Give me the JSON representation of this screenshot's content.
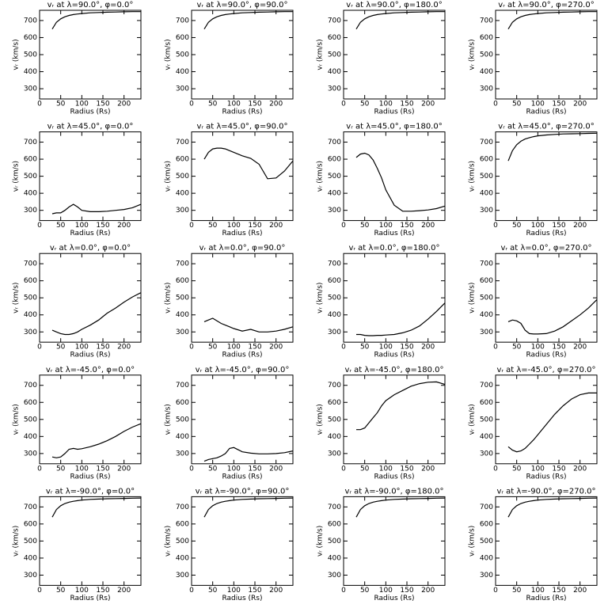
{
  "chart_data": [
    {
      "type": "line",
      "title": "vᵣ at λ=90.0°, φ=0.0°",
      "xlabel": "Radius (Rs)",
      "ylabel": "vᵣ (km/s)",
      "x": [
        30,
        40,
        50,
        60,
        70,
        80,
        90,
        100,
        120,
        140,
        160,
        180,
        200,
        220,
        240
      ],
      "values": [
        650,
        690,
        710,
        722,
        730,
        735,
        738,
        741,
        745,
        747,
        749,
        750,
        751,
        752,
        752
      ],
      "xlim": [
        0,
        240
      ],
      "ylim": [
        240,
        760
      ],
      "xticks": [
        0,
        50,
        100,
        150,
        200
      ],
      "yticks": [
        300,
        400,
        500,
        600,
        700
      ]
    },
    {
      "type": "line",
      "title": "vᵣ at λ=90.0°, φ=90.0°",
      "xlabel": "Radius (Rs)",
      "ylabel": "vᵣ (km/s)",
      "x": [
        30,
        40,
        50,
        60,
        70,
        80,
        90,
        100,
        120,
        140,
        160,
        180,
        200,
        220,
        240
      ],
      "values": [
        650,
        690,
        710,
        722,
        730,
        735,
        738,
        741,
        745,
        747,
        749,
        750,
        751,
        752,
        752
      ],
      "xlim": [
        0,
        240
      ],
      "ylim": [
        240,
        760
      ],
      "xticks": [
        0,
        50,
        100,
        150,
        200
      ],
      "yticks": [
        300,
        400,
        500,
        600,
        700
      ]
    },
    {
      "type": "line",
      "title": "vᵣ at λ=90.0°, φ=180.0°",
      "xlabel": "Radius (Rs)",
      "ylabel": "vᵣ (km/s)",
      "x": [
        30,
        40,
        50,
        60,
        70,
        80,
        90,
        100,
        120,
        140,
        160,
        180,
        200,
        220,
        240
      ],
      "values": [
        650,
        690,
        710,
        722,
        730,
        735,
        738,
        741,
        745,
        747,
        749,
        750,
        751,
        752,
        752
      ],
      "xlim": [
        0,
        240
      ],
      "ylim": [
        240,
        760
      ],
      "xticks": [
        0,
        50,
        100,
        150,
        200
      ],
      "yticks": [
        300,
        400,
        500,
        600,
        700
      ]
    },
    {
      "type": "line",
      "title": "vᵣ at λ=90.0°, φ=270.0°",
      "xlabel": "Radius (Rs)",
      "ylabel": "vᵣ (km/s)",
      "x": [
        30,
        40,
        50,
        60,
        70,
        80,
        90,
        100,
        120,
        140,
        160,
        180,
        200,
        220,
        240
      ],
      "values": [
        650,
        690,
        710,
        722,
        730,
        735,
        738,
        741,
        745,
        747,
        749,
        750,
        751,
        752,
        752
      ],
      "xlim": [
        0,
        240
      ],
      "ylim": [
        240,
        760
      ],
      "xticks": [
        0,
        50,
        100,
        150,
        200
      ],
      "yticks": [
        300,
        400,
        500,
        600,
        700
      ]
    },
    {
      "type": "line",
      "title": "vᵣ at λ=45.0°, φ=0.0°",
      "xlabel": "Radius (Rs)",
      "ylabel": "vᵣ (km/s)",
      "x": [
        30,
        40,
        50,
        60,
        70,
        80,
        90,
        100,
        120,
        140,
        160,
        180,
        200,
        220,
        240
      ],
      "values": [
        280,
        285,
        285,
        300,
        320,
        335,
        320,
        300,
        292,
        292,
        295,
        300,
        305,
        315,
        335
      ],
      "xlim": [
        0,
        240
      ],
      "ylim": [
        240,
        760
      ],
      "xticks": [
        0,
        50,
        100,
        150,
        200
      ],
      "yticks": [
        300,
        400,
        500,
        600,
        700
      ]
    },
    {
      "type": "line",
      "title": "vᵣ at λ=45.0°, φ=90.0°",
      "xlabel": "Radius (Rs)",
      "ylabel": "vᵣ (km/s)",
      "x": [
        30,
        40,
        50,
        60,
        70,
        80,
        90,
        100,
        120,
        140,
        160,
        180,
        200,
        220,
        240
      ],
      "values": [
        600,
        640,
        660,
        665,
        665,
        660,
        650,
        640,
        620,
        605,
        570,
        485,
        490,
        530,
        590
      ],
      "xlim": [
        0,
        240
      ],
      "ylim": [
        240,
        760
      ],
      "xticks": [
        0,
        50,
        100,
        150,
        200
      ],
      "yticks": [
        300,
        400,
        500,
        600,
        700
      ]
    },
    {
      "type": "line",
      "title": "vᵣ at λ=45.0°, φ=180.0°",
      "xlabel": "Radius (Rs)",
      "ylabel": "vᵣ (km/s)",
      "x": [
        30,
        40,
        50,
        60,
        70,
        80,
        90,
        100,
        120,
        140,
        160,
        180,
        200,
        220,
        240
      ],
      "values": [
        610,
        630,
        635,
        625,
        595,
        545,
        490,
        420,
        330,
        295,
        295,
        298,
        302,
        310,
        325
      ],
      "xlim": [
        0,
        240
      ],
      "ylim": [
        240,
        760
      ],
      "xticks": [
        0,
        50,
        100,
        150,
        200
      ],
      "yticks": [
        300,
        400,
        500,
        600,
        700
      ]
    },
    {
      "type": "line",
      "title": "vᵣ at λ=45.0°, φ=270.0°",
      "xlabel": "Radius (Rs)",
      "ylabel": "vᵣ (km/s)",
      "x": [
        30,
        40,
        50,
        60,
        70,
        80,
        90,
        100,
        120,
        140,
        160,
        180,
        200,
        220,
        240
      ],
      "values": [
        590,
        650,
        685,
        705,
        718,
        726,
        732,
        737,
        742,
        745,
        748,
        749,
        750,
        751,
        752
      ],
      "xlim": [
        0,
        240
      ],
      "ylim": [
        240,
        760
      ],
      "xticks": [
        0,
        50,
        100,
        150,
        200
      ],
      "yticks": [
        300,
        400,
        500,
        600,
        700
      ]
    },
    {
      "type": "line",
      "title": "vᵣ at λ=0.0°, φ=0.0°",
      "xlabel": "Radius (Rs)",
      "ylabel": "vᵣ (km/s)",
      "x": [
        30,
        40,
        50,
        60,
        70,
        80,
        90,
        100,
        120,
        140,
        160,
        180,
        200,
        220,
        240
      ],
      "values": [
        310,
        300,
        290,
        285,
        285,
        290,
        300,
        315,
        340,
        370,
        410,
        440,
        475,
        505,
        530
      ],
      "xlim": [
        0,
        240
      ],
      "ylim": [
        240,
        760
      ],
      "xticks": [
        0,
        50,
        100,
        150,
        200
      ],
      "yticks": [
        300,
        400,
        500,
        600,
        700
      ]
    },
    {
      "type": "line",
      "title": "vᵣ at λ=0.0°, φ=90.0°",
      "xlabel": "Radius (Rs)",
      "ylabel": "vᵣ (km/s)",
      "x": [
        30,
        40,
        50,
        60,
        70,
        80,
        90,
        100,
        120,
        140,
        160,
        180,
        200,
        220,
        240
      ],
      "values": [
        360,
        370,
        380,
        365,
        350,
        340,
        330,
        320,
        305,
        315,
        300,
        300,
        305,
        315,
        330
      ],
      "xlim": [
        0,
        240
      ],
      "ylim": [
        240,
        760
      ],
      "xticks": [
        0,
        50,
        100,
        150,
        200
      ],
      "yticks": [
        300,
        400,
        500,
        600,
        700
      ]
    },
    {
      "type": "line",
      "title": "vᵣ at λ=0.0°, φ=180.0°",
      "xlabel": "Radius (Rs)",
      "ylabel": "vᵣ (km/s)",
      "x": [
        30,
        40,
        50,
        60,
        70,
        80,
        90,
        100,
        120,
        140,
        160,
        180,
        200,
        220,
        240
      ],
      "values": [
        285,
        285,
        280,
        278,
        278,
        280,
        280,
        282,
        285,
        295,
        310,
        335,
        375,
        420,
        470
      ],
      "xlim": [
        0,
        240
      ],
      "ylim": [
        240,
        760
      ],
      "xticks": [
        0,
        50,
        100,
        150,
        200
      ],
      "yticks": [
        300,
        400,
        500,
        600,
        700
      ]
    },
    {
      "type": "line",
      "title": "vᵣ at λ=0.0°, φ=270.0°",
      "xlabel": "Radius (Rs)",
      "ylabel": "vᵣ (km/s)",
      "x": [
        30,
        40,
        50,
        60,
        70,
        80,
        90,
        100,
        120,
        140,
        160,
        180,
        200,
        220,
        240
      ],
      "values": [
        360,
        370,
        365,
        350,
        310,
        290,
        288,
        288,
        290,
        305,
        330,
        365,
        400,
        440,
        490
      ],
      "xlim": [
        0,
        240
      ],
      "ylim": [
        240,
        760
      ],
      "xticks": [
        0,
        50,
        100,
        150,
        200
      ],
      "yticks": [
        300,
        400,
        500,
        600,
        700
      ]
    },
    {
      "type": "line",
      "title": "vᵣ at λ=-45.0°, φ=0.0°",
      "xlabel": "Radius (Rs)",
      "ylabel": "vᵣ (km/s)",
      "x": [
        30,
        40,
        50,
        60,
        70,
        80,
        90,
        100,
        120,
        140,
        160,
        180,
        200,
        220,
        240
      ],
      "values": [
        280,
        275,
        280,
        300,
        325,
        330,
        325,
        328,
        340,
        355,
        375,
        400,
        430,
        455,
        475
      ],
      "xlim": [
        0,
        240
      ],
      "ylim": [
        240,
        760
      ],
      "xticks": [
        0,
        50,
        100,
        150,
        200
      ],
      "yticks": [
        300,
        400,
        500,
        600,
        700
      ]
    },
    {
      "type": "line",
      "title": "vᵣ at λ=-45.0°, φ=90.0°",
      "xlabel": "Radius (Rs)",
      "ylabel": "vᵣ (km/s)",
      "x": [
        30,
        40,
        50,
        60,
        70,
        80,
        90,
        100,
        120,
        140,
        160,
        180,
        200,
        220,
        240
      ],
      "values": [
        255,
        265,
        270,
        275,
        285,
        300,
        330,
        335,
        310,
        302,
        298,
        298,
        300,
        305,
        315
      ],
      "xlim": [
        0,
        240
      ],
      "ylim": [
        240,
        760
      ],
      "xticks": [
        0,
        50,
        100,
        150,
        200
      ],
      "yticks": [
        300,
        400,
        500,
        600,
        700
      ]
    },
    {
      "type": "line",
      "title": "vᵣ at λ=-45.0°, φ=180.0°",
      "xlabel": "Radius (Rs)",
      "ylabel": "vᵣ (km/s)",
      "x": [
        30,
        40,
        50,
        60,
        70,
        80,
        90,
        100,
        120,
        140,
        160,
        180,
        200,
        220,
        240
      ],
      "values": [
        440,
        440,
        450,
        480,
        510,
        540,
        580,
        610,
        645,
        670,
        695,
        710,
        718,
        720,
        705
      ],
      "xlim": [
        0,
        240
      ],
      "ylim": [
        240,
        760
      ],
      "xticks": [
        0,
        50,
        100,
        150,
        200
      ],
      "yticks": [
        300,
        400,
        500,
        600,
        700
      ]
    },
    {
      "type": "line",
      "title": "vᵣ at λ=-45.0°, φ=270.0°",
      "xlabel": "Radius (Rs)",
      "ylabel": "vᵣ (km/s)",
      "x": [
        30,
        40,
        50,
        60,
        70,
        80,
        90,
        100,
        120,
        140,
        160,
        180,
        200,
        220,
        240
      ],
      "values": [
        340,
        320,
        310,
        315,
        330,
        355,
        380,
        410,
        470,
        530,
        580,
        620,
        645,
        655,
        655
      ],
      "xlim": [
        0,
        240
      ],
      "ylim": [
        240,
        760
      ],
      "xticks": [
        0,
        50,
        100,
        150,
        200
      ],
      "yticks": [
        300,
        400,
        500,
        600,
        700
      ]
    },
    {
      "type": "line",
      "title": "vᵣ at λ=-90.0°, φ=0.0°",
      "xlabel": "Radius (Rs)",
      "ylabel": "vᵣ (km/s)",
      "x": [
        30,
        40,
        50,
        60,
        70,
        80,
        90,
        100,
        120,
        140,
        160,
        180,
        200,
        220,
        240
      ],
      "values": [
        640,
        685,
        707,
        720,
        728,
        733,
        737,
        740,
        744,
        746,
        748,
        749,
        750,
        751,
        752
      ],
      "xlim": [
        0,
        240
      ],
      "ylim": [
        240,
        760
      ],
      "xticks": [
        0,
        50,
        100,
        150,
        200
      ],
      "yticks": [
        300,
        400,
        500,
        600,
        700
      ]
    },
    {
      "type": "line",
      "title": "vᵣ at λ=-90.0°, φ=90.0°",
      "xlabel": "Radius (Rs)",
      "ylabel": "vᵣ (km/s)",
      "x": [
        30,
        40,
        50,
        60,
        70,
        80,
        90,
        100,
        120,
        140,
        160,
        180,
        200,
        220,
        240
      ],
      "values": [
        640,
        685,
        707,
        720,
        728,
        733,
        737,
        740,
        744,
        746,
        748,
        749,
        750,
        751,
        752
      ],
      "xlim": [
        0,
        240
      ],
      "ylim": [
        240,
        760
      ],
      "xticks": [
        0,
        50,
        100,
        150,
        200
      ],
      "yticks": [
        300,
        400,
        500,
        600,
        700
      ]
    },
    {
      "type": "line",
      "title": "vᵣ at λ=-90.0°, φ=180.0°",
      "xlabel": "Radius (Rs)",
      "ylabel": "vᵣ (km/s)",
      "x": [
        30,
        40,
        50,
        60,
        70,
        80,
        90,
        100,
        120,
        140,
        160,
        180,
        200,
        220,
        240
      ],
      "values": [
        640,
        685,
        707,
        720,
        728,
        733,
        737,
        740,
        744,
        746,
        748,
        749,
        750,
        751,
        752
      ],
      "xlim": [
        0,
        240
      ],
      "ylim": [
        240,
        760
      ],
      "xticks": [
        0,
        50,
        100,
        150,
        200
      ],
      "yticks": [
        300,
        400,
        500,
        600,
        700
      ]
    },
    {
      "type": "line",
      "title": "vᵣ at λ=-90.0°, φ=270.0°",
      "xlabel": "Radius (Rs)",
      "ylabel": "vᵣ (km/s)",
      "x": [
        30,
        40,
        50,
        60,
        70,
        80,
        90,
        100,
        120,
        140,
        160,
        180,
        200,
        220,
        240
      ],
      "values": [
        640,
        685,
        707,
        720,
        728,
        733,
        737,
        740,
        744,
        746,
        748,
        749,
        750,
        751,
        752
      ],
      "xlim": [
        0,
        240
      ],
      "ylim": [
        240,
        760
      ],
      "xticks": [
        0,
        50,
        100,
        150,
        200
      ],
      "yticks": [
        300,
        400,
        500,
        600,
        700
      ]
    }
  ]
}
